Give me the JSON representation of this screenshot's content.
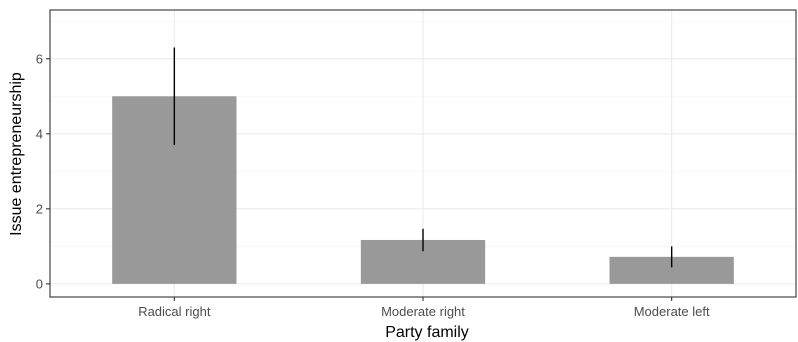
{
  "chart_data": {
    "type": "bar",
    "title": "",
    "xlabel": "Party family",
    "ylabel": "Issue entrepreneurship",
    "categories": [
      "Radical right",
      "Moderate right",
      "Moderate left"
    ],
    "values": [
      5.0,
      1.17,
      0.72
    ],
    "error_bars": [
      {
        "low": 3.7,
        "high": 6.3
      },
      {
        "low": 0.87,
        "high": 1.47
      },
      {
        "low": 0.44,
        "high": 1.0
      }
    ],
    "ylim": [
      -0.35,
      7.3
    ],
    "yticks": [
      0,
      2,
      4,
      6
    ],
    "ytick_labels": [
      "0",
      "2",
      "4",
      "6"
    ],
    "grid": true,
    "legend": "none",
    "colors": {
      "bar": "#999999",
      "error_bar": "#000000",
      "grid_major": "#ebebeb",
      "grid_minor": "#f5f5f5",
      "panel_border": "#333333",
      "tick_text": "#4d4d4d"
    }
  }
}
